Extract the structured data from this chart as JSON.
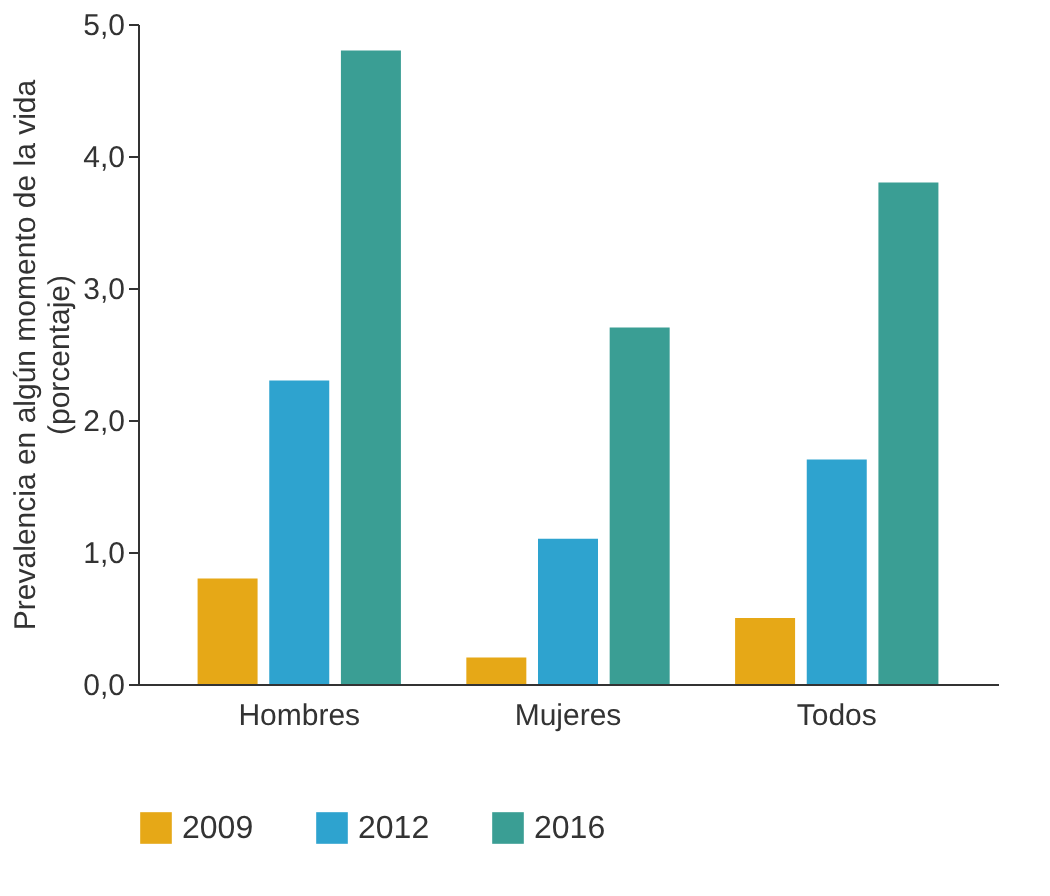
{
  "chart_data": {
    "type": "bar",
    "ylabel": "Prevalencia en algún momento de la vida\n(porcentaje)",
    "categories": [
      "Hombres",
      "Mujeres",
      "Todos"
    ],
    "series": [
      {
        "name": "2009",
        "color": "#e6a817",
        "values": [
          0.8,
          0.2,
          0.5
        ]
      },
      {
        "name": "2012",
        "color": "#2ea3cf",
        "values": [
          2.3,
          1.1,
          1.7
        ]
      },
      {
        "name": "2016",
        "color": "#3a9e94",
        "values": [
          4.8,
          2.7,
          3.8
        ]
      }
    ],
    "ylim": [
      0,
      5
    ],
    "yticks": [
      {
        "value": 0,
        "label": "0,0"
      },
      {
        "value": 1,
        "label": "1,0"
      },
      {
        "value": 2,
        "label": "2,0"
      },
      {
        "value": 3,
        "label": "3,0"
      },
      {
        "value": 4,
        "label": "4,0"
      },
      {
        "value": 5,
        "label": "5,0"
      }
    ],
    "grid": false,
    "legend": "bottom"
  }
}
